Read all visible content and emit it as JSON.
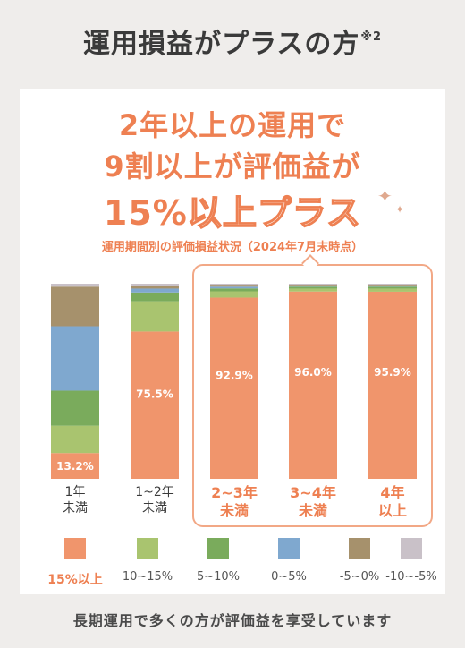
{
  "page": {
    "title": "運用損益がプラスの方",
    "title_note": "※2",
    "headline_line1": "2年以上の運用で",
    "headline_line2": "9割以上が評価益が",
    "headline_line3_num": "15%",
    "headline_line3_rest": "以上プラス",
    "subtitle": "運用期間別の評価損益状況（2024年7月末時点）",
    "footer": "長期運用で多くの方が評価益を享受しています"
  },
  "colors": {
    "accent": "#ee8052",
    "s15": "#f0956c",
    "s10_15": "#a9c46f",
    "s5_10": "#7aab5c",
    "s0_5": "#7fa8cf",
    "sneg5_0": "#a6916c",
    "sneg10_5": "#c9c1c8"
  },
  "chart_data": {
    "type": "bar",
    "stacked": true,
    "percent_stacked": true,
    "categories": [
      "1年\n未満",
      "1~2年\n未満",
      "2~3年\n未満",
      "3~4年\n未満",
      "4年\n以上"
    ],
    "series": [
      {
        "name": "15%以上",
        "values": [
          13.2,
          75.5,
          92.9,
          96.0,
          95.9
        ]
      },
      {
        "name": "10~15%",
        "values": [
          14.0,
          15.5,
          3.2,
          1.5,
          1.6
        ]
      },
      {
        "name": "5~10%",
        "values": [
          18.0,
          4.5,
          1.5,
          1.0,
          1.0
        ]
      },
      {
        "name": "0~5%",
        "values": [
          33.0,
          2.0,
          0.9,
          0.5,
          0.5
        ]
      },
      {
        "name": "-5~0%",
        "values": [
          20.3,
          1.5,
          1.0,
          0.5,
          0.5
        ]
      },
      {
        "name": "-10~-5%",
        "values": [
          1.5,
          1.0,
          0.5,
          0.5,
          0.5
        ]
      }
    ],
    "data_labels": [
      "13.2%",
      "75.5%",
      "92.9%",
      "96.0%",
      "95.9%"
    ],
    "highlighted_categories": [
      2,
      3,
      4
    ],
    "ylim": [
      0,
      100
    ],
    "legend": "bottom",
    "grid": false
  }
}
